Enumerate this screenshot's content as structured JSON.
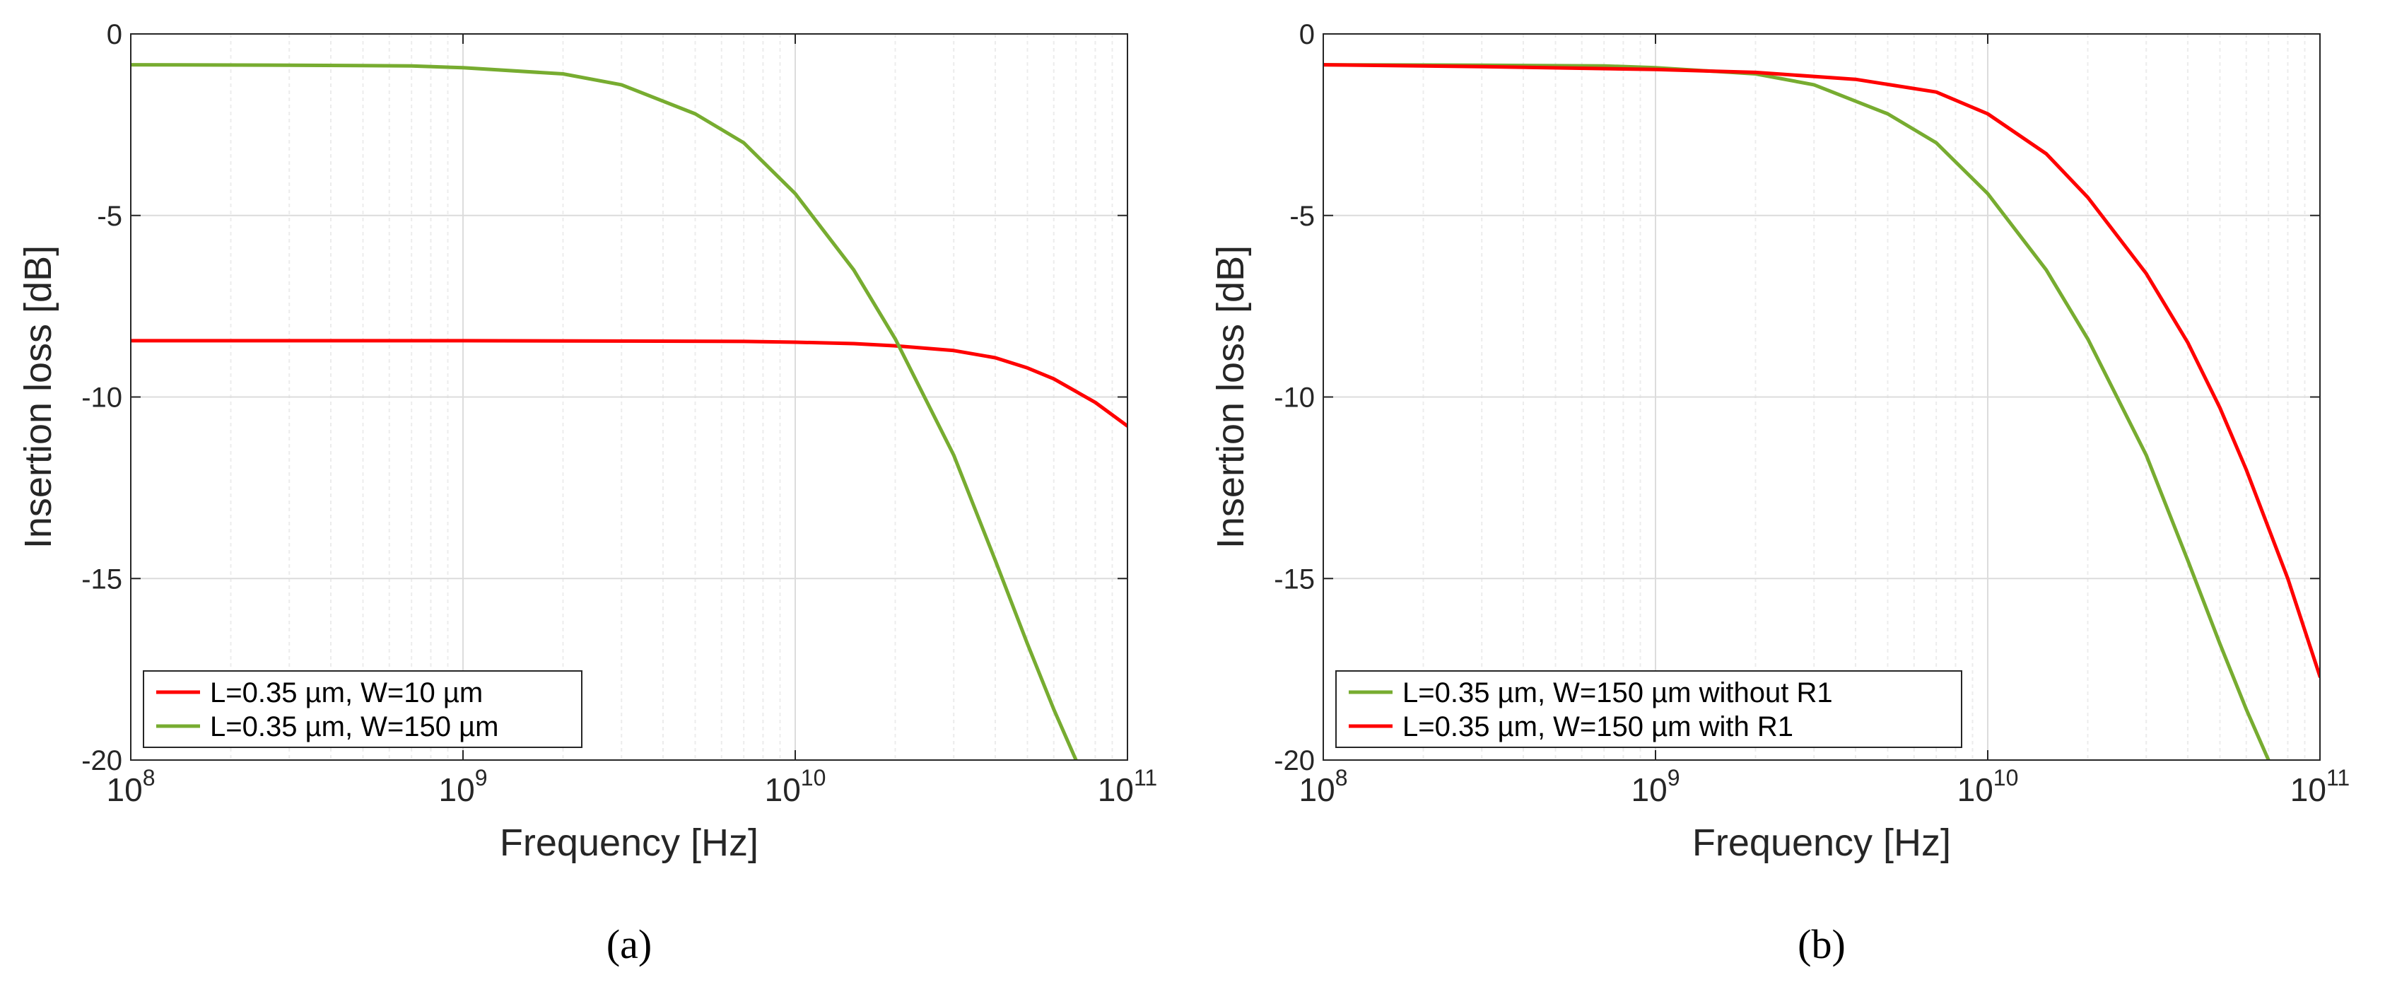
{
  "colors": {
    "red": "#ff0000",
    "green": "#77ac30",
    "axis": "#262626",
    "grid": "#dcdcdc",
    "minor_grid": "#ececec"
  },
  "chart_data": [
    {
      "id": "a",
      "type": "line",
      "caption": "(a)",
      "xlabel": "Frequency [Hz]",
      "ylabel": "Insertion loss [dB]",
      "xscale": "log",
      "xlim": [
        100000000,
        100000000000
      ],
      "ylim": [
        -20,
        0
      ],
      "xticks": [
        {
          "value": 100000000,
          "base": "10",
          "exp": "8"
        },
        {
          "value": 1000000000,
          "base": "10",
          "exp": "9"
        },
        {
          "value": 10000000000,
          "base": "10",
          "exp": "10"
        },
        {
          "value": 100000000000,
          "base": "10",
          "exp": "11"
        }
      ],
      "yticks": [
        0,
        -5,
        -10,
        -15,
        -20
      ],
      "grid": true,
      "legend_position": "bottom-left",
      "series": [
        {
          "name": "L=0.35 µm, W=10 µm",
          "color": "#ff0000",
          "x": [
            100000000.0,
            1000000000.0,
            3000000000.0,
            7000000000.0,
            10000000000.0,
            15000000000.0,
            20000000000.0,
            30000000000.0,
            40000000000.0,
            50000000000.0,
            60000000000.0,
            80000000000.0,
            100000000000.0
          ],
          "y": [
            -8.45,
            -8.45,
            -8.46,
            -8.47,
            -8.49,
            -8.53,
            -8.59,
            -8.72,
            -8.92,
            -9.2,
            -9.5,
            -10.15,
            -10.8
          ]
        },
        {
          "name": "L=0.35 µm, W=150 µm",
          "color": "#77ac30",
          "x": [
            100000000.0,
            300000000.0,
            700000000.0,
            1000000000.0,
            2000000000.0,
            3000000000.0,
            5000000000.0,
            7000000000.0,
            10000000000.0,
            15000000000.0,
            20000000000.0,
            30000000000.0,
            40000000000.0,
            50000000000.0,
            60000000000.0,
            70000000000.0
          ],
          "y": [
            -0.85,
            -0.86,
            -0.88,
            -0.93,
            -1.1,
            -1.4,
            -2.2,
            -3.0,
            -4.4,
            -6.5,
            -8.4,
            -11.6,
            -14.5,
            -16.8,
            -18.6,
            -20
          ]
        }
      ]
    },
    {
      "id": "b",
      "type": "line",
      "caption": "(b)",
      "xlabel": "Frequency [Hz]",
      "ylabel": "Insertion loss [dB]",
      "xscale": "log",
      "xlim": [
        100000000,
        100000000000
      ],
      "ylim": [
        -20,
        0
      ],
      "xticks": [
        {
          "value": 100000000,
          "base": "10",
          "exp": "8"
        },
        {
          "value": 1000000000,
          "base": "10",
          "exp": "9"
        },
        {
          "value": 10000000000,
          "base": "10",
          "exp": "10"
        },
        {
          "value": 100000000000,
          "base": "10",
          "exp": "11"
        }
      ],
      "yticks": [
        0,
        -5,
        -10,
        -15,
        -20
      ],
      "grid": true,
      "legend_position": "bottom-left",
      "series": [
        {
          "name": "L=0.35 µm, W=150 µm without R1",
          "color": "#77ac30",
          "x": [
            100000000.0,
            300000000.0,
            700000000.0,
            1000000000.0,
            2000000000.0,
            3000000000.0,
            5000000000.0,
            7000000000.0,
            10000000000.0,
            15000000000.0,
            20000000000.0,
            30000000000.0,
            40000000000.0,
            50000000000.0,
            60000000000.0,
            70000000000.0
          ],
          "y": [
            -0.85,
            -0.86,
            -0.88,
            -0.93,
            -1.1,
            -1.4,
            -2.2,
            -3.0,
            -4.4,
            -6.5,
            -8.4,
            -11.6,
            -14.5,
            -16.8,
            -18.6,
            -20
          ]
        },
        {
          "name": "L=0.35 µm, W=150 µm with R1",
          "color": "#ff0000",
          "x": [
            100000000.0,
            300000000.0,
            1000000000.0,
            2000000000.0,
            4000000000.0,
            7000000000.0,
            10000000000.0,
            15000000000.0,
            20000000000.0,
            30000000000.0,
            40000000000.0,
            50000000000.0,
            60000000000.0,
            80000000000.0,
            100000000000.0
          ],
          "y": [
            -0.85,
            -0.9,
            -0.98,
            -1.06,
            -1.25,
            -1.6,
            -2.2,
            -3.3,
            -4.5,
            -6.6,
            -8.5,
            -10.3,
            -12.0,
            -15.0,
            -17.7
          ]
        }
      ]
    }
  ]
}
